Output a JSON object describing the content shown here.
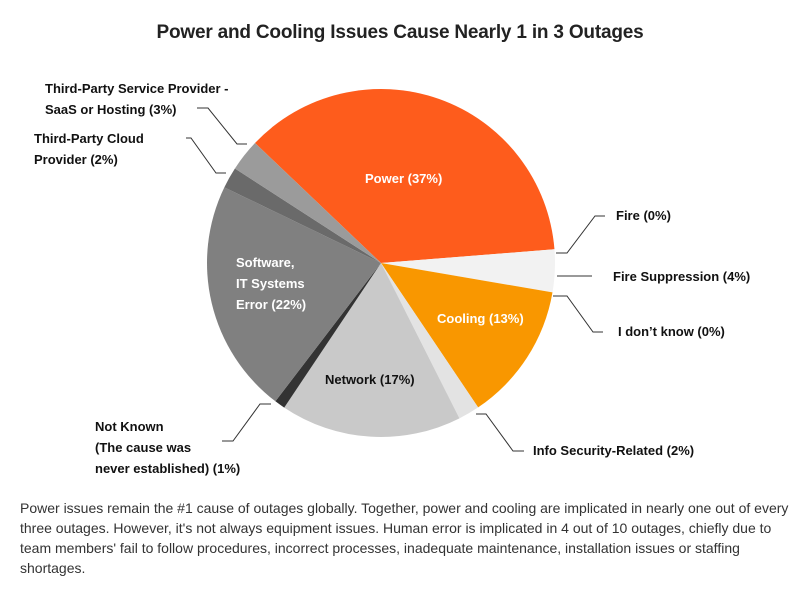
{
  "title": "Power and Cooling Issues Cause Nearly 1 in 3 Outages",
  "caption": "Power issues remain the #1 cause of outages globally. Together, power and cooling are implicated in nearly one out of every three outages. However, it's not always equipment issues. Human error is implicated in 4 out of 10 outages, chiefly due to team members' fail to follow procedures, incorrect processes, inadequate maintenance, installation issues or staffing shortages.",
  "labels": {
    "third_party_service": [
      "Third-Party Service Provider -",
      "SaaS or Hosting (3%)"
    ],
    "third_party_cloud": [
      "Third-Party  Cloud",
      "Provider (2%)"
    ],
    "power": "Power (37%)",
    "fire": "Fire (0%)",
    "fire_suppression": "Fire Suppression (4%)",
    "i_dont_know": "I don’t know (0%)",
    "cooling": "Cooling (13%)",
    "info_security": "Info Security-Related (2%)",
    "network": "Network (17%)",
    "not_known": [
      "Not Known",
      "(The cause was",
      "never established) (1%)"
    ],
    "software": [
      "Software,",
      "IT Systems",
      "Error (22%)"
    ]
  },
  "chart_data": {
    "type": "pie",
    "title": "Power and Cooling Issues Cause Nearly 1 in 3 Outages",
    "start_angle_deg": 313.6,
    "direction": "clockwise",
    "slices": [
      {
        "name": "Power",
        "value": 37,
        "color": "#fe5c1c"
      },
      {
        "name": "Fire",
        "value": 0,
        "color": "#ffffff"
      },
      {
        "name": "Fire Suppression",
        "value": 4,
        "color": "#f2f2f2"
      },
      {
        "name": "I don't know",
        "value": 0,
        "color": "#ffffff"
      },
      {
        "name": "Cooling",
        "value": 13,
        "color": "#f99700"
      },
      {
        "name": "Info Security-Related",
        "value": 2,
        "color": "#e3e3e3"
      },
      {
        "name": "Network",
        "value": 17,
        "color": "#c9c9c9"
      },
      {
        "name": "Not Known (The cause was never established)",
        "value": 1,
        "color": "#333333"
      },
      {
        "name": "Software, IT Systems Error",
        "value": 22,
        "color": "#808080"
      },
      {
        "name": "Third-Party Cloud Provider",
        "value": 2,
        "color": "#6a6a6a"
      },
      {
        "name": "Third-Party Service Provider - SaaS or Hosting",
        "value": 3,
        "color": "#9b9b9b"
      }
    ],
    "center": [
      381,
      263
    ],
    "radius": 174
  }
}
